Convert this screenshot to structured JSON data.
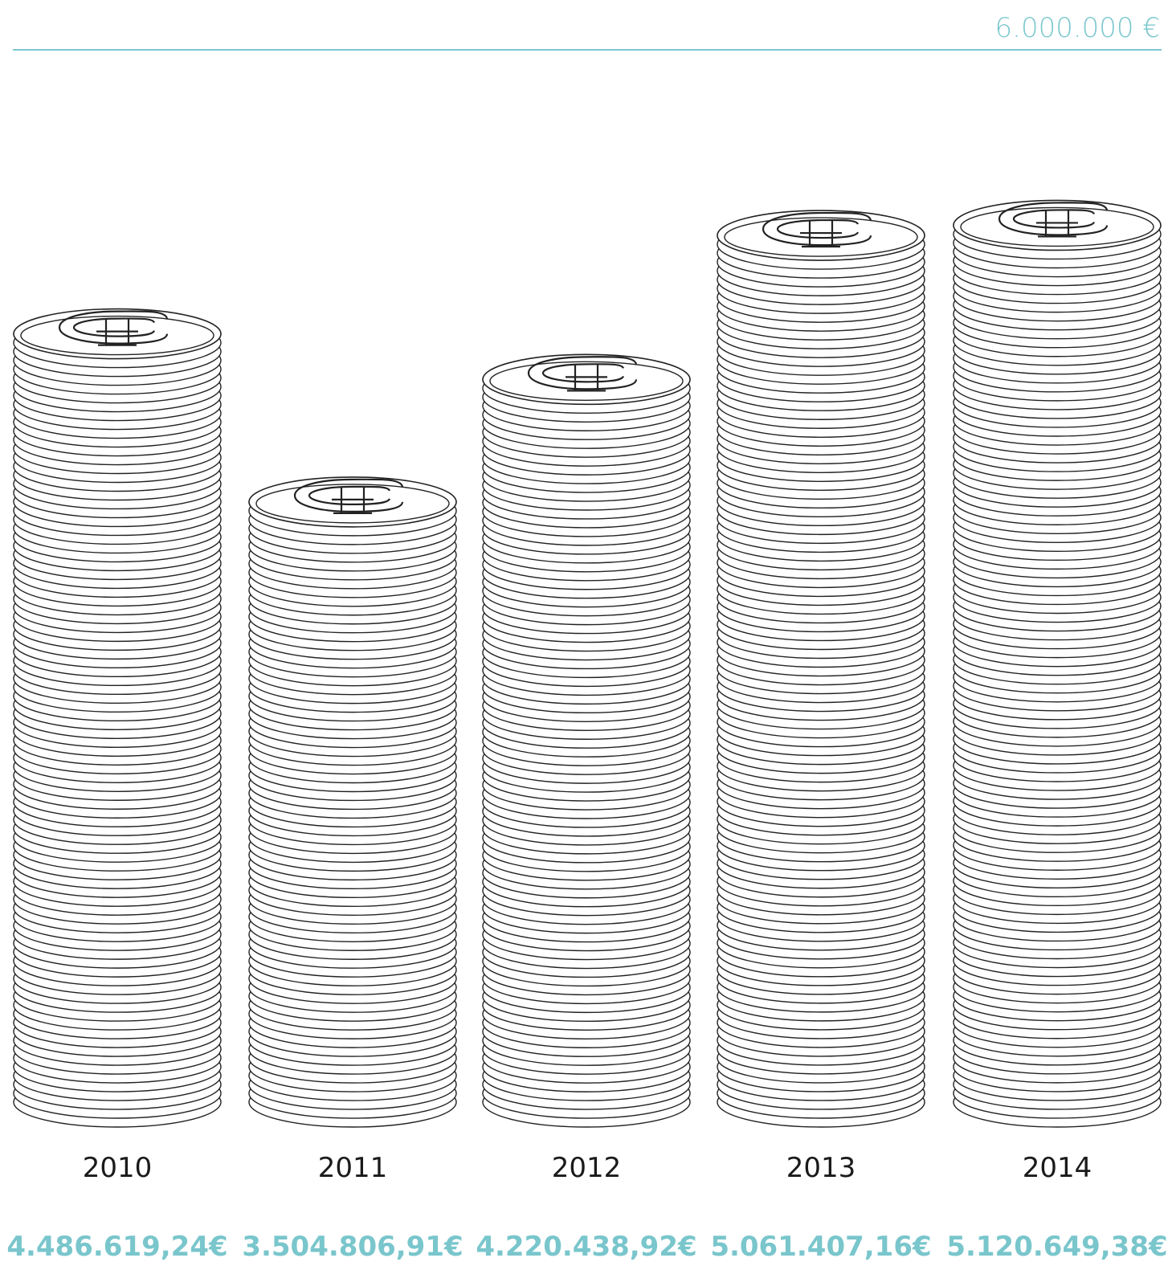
{
  "chart_data": {
    "type": "bar",
    "title": "",
    "xlabel": "",
    "ylabel": "",
    "ylim": [
      0,
      6000000
    ],
    "reference_line": {
      "value": 6000000,
      "label": "6.000.000 €"
    },
    "categories": [
      "2010",
      "2011",
      "2012",
      "2013",
      "2014"
    ],
    "values": [
      4486619.24,
      3504806.91,
      4220438.92,
      5061407.16,
      5120649.38
    ],
    "value_labels": [
      "4.486.619,24€",
      "3.504.806,91€",
      "4.220.438,92€",
      "5.061.407,16€",
      "5.120.649,38€"
    ],
    "grid": false,
    "legend": "none",
    "colors": {
      "accent": "#7cc8cf",
      "stroke": "#222222",
      "background": "#ffffff"
    },
    "mark_icon": "euro-coin-stack-icon"
  }
}
